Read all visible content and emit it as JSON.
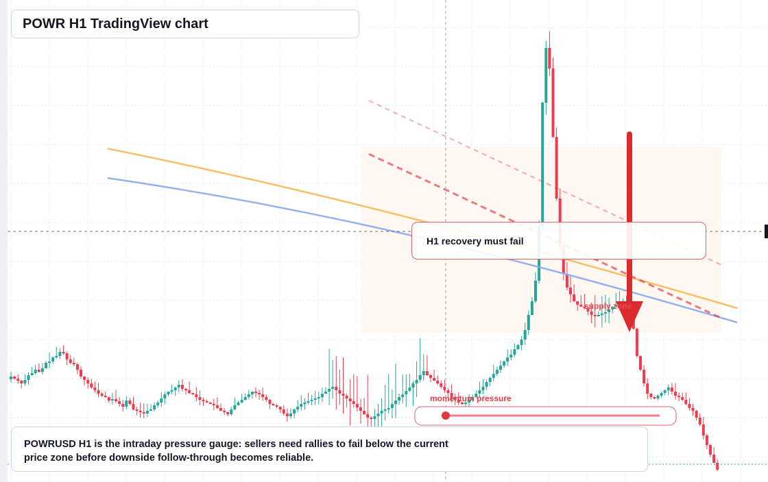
{
  "header": {
    "title": "POWR H1 TradingView chart"
  },
  "annotations": {
    "callout": "H1 recovery must fail",
    "caption": "POWRUSD H1 is the intraday pressure gauge: sellers need rallies to fail below the current price zone before downside follow-through becomes reliable.",
    "momentum_label": "momentum pressure",
    "zone_label": "supply zone"
  },
  "colors": {
    "up": "#26a69a",
    "down": "#ef3b4d",
    "ma_fast": "#f7b955",
    "ma_slow": "#8aa8ee",
    "bearish": "#e03a3e",
    "grid": "#e7e9ee"
  },
  "chart_data": {
    "type": "candlestick",
    "ylim": [
      0,
      704
    ],
    "series": [
      {
        "name": "price",
        "values": [
          550,
          553,
          556,
          560,
          555,
          548,
          545,
          540,
          543,
          538,
          530,
          528,
          522,
          520,
          514,
          516,
          525,
          530,
          532,
          540,
          550,
          555,
          560,
          566,
          570,
          575,
          578,
          580,
          585,
          583,
          586,
          590,
          594,
          585,
          590,
          598,
          600,
          602,
          604,
          600,
          598,
          592,
          588,
          582,
          576,
          572,
          570,
          566,
          562,
          568,
          570,
          574,
          576,
          580,
          584,
          586,
          588,
          590,
          592,
          596,
          600,
          602,
          605,
          598,
          592,
          588,
          584,
          580,
          576,
          572,
          574,
          576,
          580,
          584,
          590,
          592,
          594,
          598,
          604,
          608,
          604,
          598,
          594,
          590,
          588,
          586,
          584,
          582,
          580,
          575,
          572,
          568,
          565,
          570,
          575,
          578,
          582,
          586,
          590,
          595,
          600,
          605,
          610,
          612,
          608,
          604,
          600,
          598,
          596,
          590,
          585,
          580,
          576,
          571,
          566,
          560,
          555,
          548,
          542,
          548,
          552,
          556,
          560,
          565,
          570,
          574,
          580,
          584,
          588,
          590,
          588,
          584,
          580,
          575,
          570,
          565,
          558,
          552,
          546,
          540,
          534,
          528,
          522,
          518,
          510,
          504,
          496,
          482,
          460,
          440,
          410,
          330,
          150,
          70,
          100,
          200,
          290,
          360,
          400,
          420,
          430,
          440,
          445,
          448,
          450,
          455,
          460,
          462,
          460,
          458,
          456,
          452,
          448,
          446,
          444,
          440,
          450,
          460,
          480,
          520,
          540,
          560,
          575,
          580,
          582,
          578,
          574,
          570,
          566,
          572,
          578,
          580,
          584,
          590,
          596,
          600,
          610,
          620,
          636,
          650,
          664,
          676,
          686
        ]
      }
    ]
  }
}
